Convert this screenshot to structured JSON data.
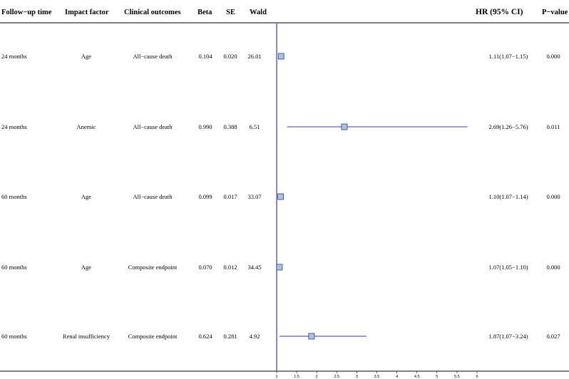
{
  "header": {
    "followup": "Follow−up time",
    "factor": "Impact factor",
    "outcome": "Clinical outcomes",
    "beta": "Beta",
    "se": "SE",
    "wald": "Wald",
    "hr": "HR (95% CI)",
    "pvalue": "P−value"
  },
  "colors": {
    "axis": "#3a3aa8",
    "ci_line": "#3a3aa8",
    "marker_fill": "#a9c3e8",
    "marker_stroke": "#2b3f6e",
    "divider": "#000000"
  },
  "chart_data": {
    "type": "forest",
    "reference_line": 1,
    "x_scale": "linear",
    "xlim": [
      1,
      6
    ],
    "ticks": [
      1,
      1.5,
      2,
      2.5,
      3,
      3.5,
      4,
      4.5,
      5,
      5.5,
      6
    ],
    "tick_labels": [
      "1",
      "1.5",
      "2",
      "2.5",
      "3",
      "3.5",
      "4",
      "4.5",
      "5",
      "5.5",
      "6"
    ],
    "rows": [
      {
        "followup": "24 months",
        "factor": "Age",
        "outcome": "All−cause death",
        "beta": "0.104",
        "se": "0.020",
        "wald": "26.01",
        "hr": 1.11,
        "lower": 1.07,
        "upper": 1.15,
        "hr_text": "1.11(1.07−1.15)",
        "p": "0.000"
      },
      {
        "followup": "24 months",
        "factor": "Anemic",
        "outcome": "All−cause death",
        "beta": "0.990",
        "se": "0.388",
        "wald": "6.51",
        "hr": 2.69,
        "lower": 1.26,
        "upper": 5.76,
        "hr_text": "2.69(1.26−5.76)",
        "p": "0.011"
      },
      {
        "followup": "60 months",
        "factor": "Age",
        "outcome": "All−cause death",
        "beta": "0.099",
        "se": "0.017",
        "wald": "33.07",
        "hr": 1.1,
        "lower": 1.07,
        "upper": 1.14,
        "hr_text": "1.10(1.07−1.14)",
        "p": "0.000"
      },
      {
        "followup": "60 months",
        "factor": "Age",
        "outcome": "Composite endpoint",
        "beta": "0.070",
        "se": "0.012",
        "wald": "34.45",
        "hr": 1.07,
        "lower": 1.05,
        "upper": 1.1,
        "hr_text": "1.07(1.05−1.10)",
        "p": "0.000"
      },
      {
        "followup": "60 months",
        "factor": "Renal insufficiency",
        "outcome": "Composite endpoint",
        "beta": "0.624",
        "se": "0.281",
        "wald": "4.92",
        "hr": 1.87,
        "lower": 1.07,
        "upper": 3.24,
        "hr_text": "1.87(1.07−3.24)",
        "p": "0.027"
      }
    ]
  }
}
